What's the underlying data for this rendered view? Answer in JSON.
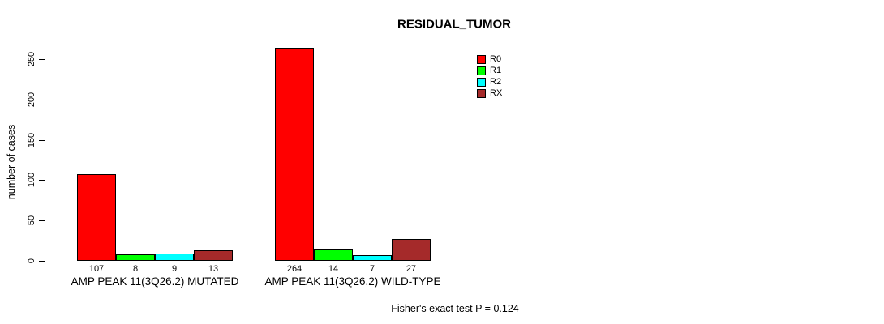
{
  "chart_data": {
    "type": "bar",
    "title": "RESIDUAL_TUMOR",
    "xlabel": "",
    "ylabel": "number of cases",
    "categories": [
      "AMP PEAK 11(3Q26.2) MUTATED",
      "AMP PEAK 11(3Q26.2) WILD-TYPE"
    ],
    "series": [
      {
        "name": "R0",
        "color": "#ff0000",
        "values": [
          107,
          264
        ]
      },
      {
        "name": "R1",
        "color": "#00ff00",
        "values": [
          8,
          14
        ]
      },
      {
        "name": "R2",
        "color": "#00ffff",
        "values": [
          9,
          7
        ]
      },
      {
        "name": "RX",
        "color": "#a52a2a",
        "values": [
          13,
          27
        ]
      }
    ],
    "yticks": [
      0,
      50,
      100,
      150,
      200,
      250
    ],
    "ylim": [
      0,
      250
    ],
    "grid": false,
    "legend_position": "top-right",
    "bar_value_labels_shown": true,
    "annotation": "Fisher's exact test P = 0.124"
  }
}
